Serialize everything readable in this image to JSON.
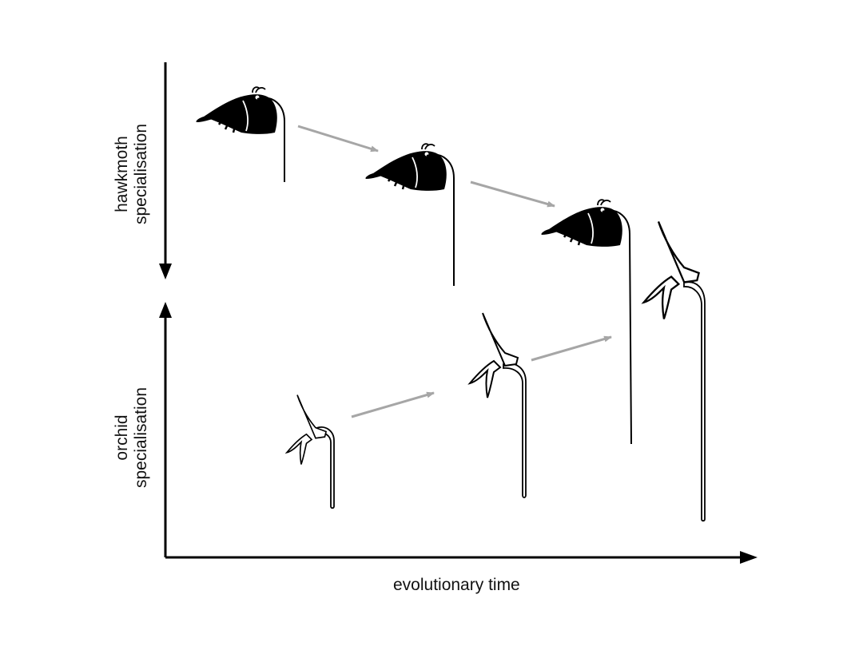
{
  "labels": {
    "hawkmoth": [
      "hawkmoth",
      "specialisation"
    ],
    "orchid": [
      "orchid",
      "specialisation"
    ],
    "time": "evolutionary time"
  },
  "colors": {
    "axis": "#000000",
    "arrow": "#a6a6a6",
    "moth_fill": "#000000",
    "flower_stroke": "#000000",
    "flower_fill": "#ffffff"
  }
}
